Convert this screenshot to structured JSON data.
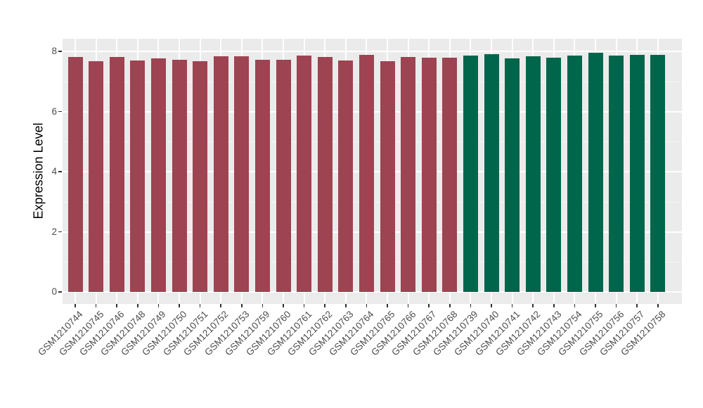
{
  "figure": {
    "background": "#FFFFFF",
    "panel_background": "#EBEBEB",
    "grid_major_color": "#FFFFFF",
    "grid_minor_color": "#F5F5F5",
    "tick_mark_color": "#333333",
    "axis_text_color": "#4D4D4D",
    "axis_title_color": "#000000",
    "group_colors": {
      "maroon": "#9E4352",
      "green": "#00664B"
    }
  },
  "chart_data": {
    "type": "bar",
    "title": "",
    "xlabel": "",
    "ylabel": "Expression Level",
    "ylim": [
      0,
      8.4
    ],
    "yticks": [
      "0",
      "2",
      "4",
      "6",
      "8"
    ],
    "ytick_values": [
      0,
      2,
      4,
      6,
      8
    ],
    "yminor_values": [
      1,
      3,
      5,
      7
    ],
    "grid": true,
    "legend": "none",
    "categories": [
      "GSM1210744",
      "GSM1210745",
      "GSM1210746",
      "GSM1210748",
      "GSM1210749",
      "GSM1210750",
      "GSM1210751",
      "GSM1210752",
      "GSM1210753",
      "GSM1210759",
      "GSM1210760",
      "GSM1210761",
      "GSM1210762",
      "GSM1210763",
      "GSM1210764",
      "GSM1210765",
      "GSM1210766",
      "GSM1210767",
      "GSM1210768",
      "GSM1210739",
      "GSM1210740",
      "GSM1210741",
      "GSM1210742",
      "GSM1210743",
      "GSM1210754",
      "GSM1210755",
      "GSM1210756",
      "GSM1210757",
      "GSM1210758"
    ],
    "values": [
      7.82,
      7.68,
      7.81,
      7.69,
      7.77,
      7.73,
      7.67,
      7.83,
      7.83,
      7.72,
      7.71,
      7.87,
      7.81,
      7.69,
      7.88,
      7.68,
      7.82,
      7.79,
      7.8,
      7.86,
      7.91,
      7.77,
      7.83,
      7.79,
      7.86,
      7.95,
      7.87,
      7.88,
      7.88
    ],
    "colors": [
      "#9E4352",
      "#9E4352",
      "#9E4352",
      "#9E4352",
      "#9E4352",
      "#9E4352",
      "#9E4352",
      "#9E4352",
      "#9E4352",
      "#9E4352",
      "#9E4352",
      "#9E4352",
      "#9E4352",
      "#9E4352",
      "#9E4352",
      "#9E4352",
      "#9E4352",
      "#9E4352",
      "#9E4352",
      "#00664B",
      "#00664B",
      "#00664B",
      "#00664B",
      "#00664B",
      "#00664B",
      "#00664B",
      "#00664B",
      "#00664B",
      "#00664B"
    ]
  }
}
